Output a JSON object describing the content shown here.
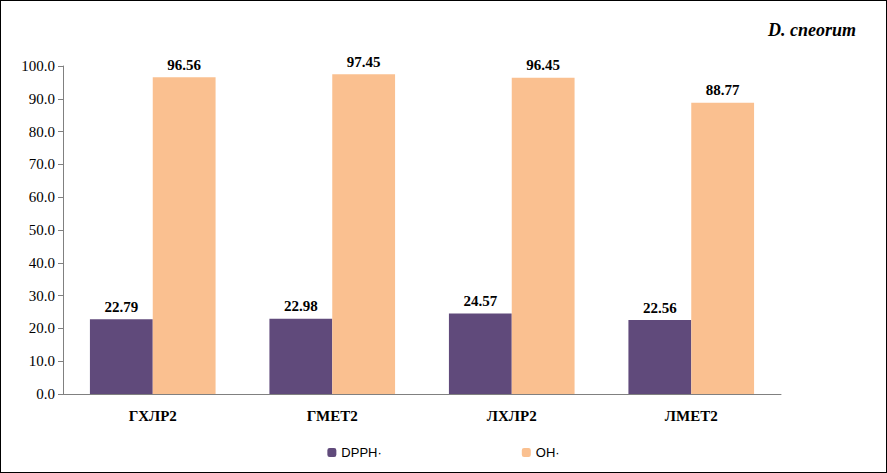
{
  "chart_data": {
    "type": "bar",
    "annotation": "D. cneorum",
    "categories": [
      "ГХЛР2",
      "ГМЕТ2",
      "ЛХЛР2",
      "ЛМЕТ2"
    ],
    "series": [
      {
        "name": "DPPH·",
        "color": "#604a7b",
        "values": [
          22.79,
          22.98,
          24.57,
          22.56
        ]
      },
      {
        "name": "OH·",
        "color": "#fac090",
        "values": [
          96.56,
          97.45,
          96.45,
          88.77
        ]
      }
    ],
    "ylim": [
      0,
      100
    ],
    "yticks": [
      {
        "value": 0,
        "label": "0.0"
      },
      {
        "value": 10,
        "label": "10.0"
      },
      {
        "value": 20,
        "label": "20.0"
      },
      {
        "value": 30,
        "label": "30.0"
      },
      {
        "value": 40,
        "label": "40.0"
      },
      {
        "value": 50,
        "label": "50.0"
      },
      {
        "value": 60,
        "label": "60.0"
      },
      {
        "value": 70,
        "label": "70.0"
      },
      {
        "value": 80,
        "label": "80.0"
      },
      {
        "value": 90,
        "label": "90.0"
      },
      {
        "value": 100,
        "label": "100.0"
      }
    ],
    "grid": false,
    "legend": "bottom",
    "data_labels": true
  }
}
